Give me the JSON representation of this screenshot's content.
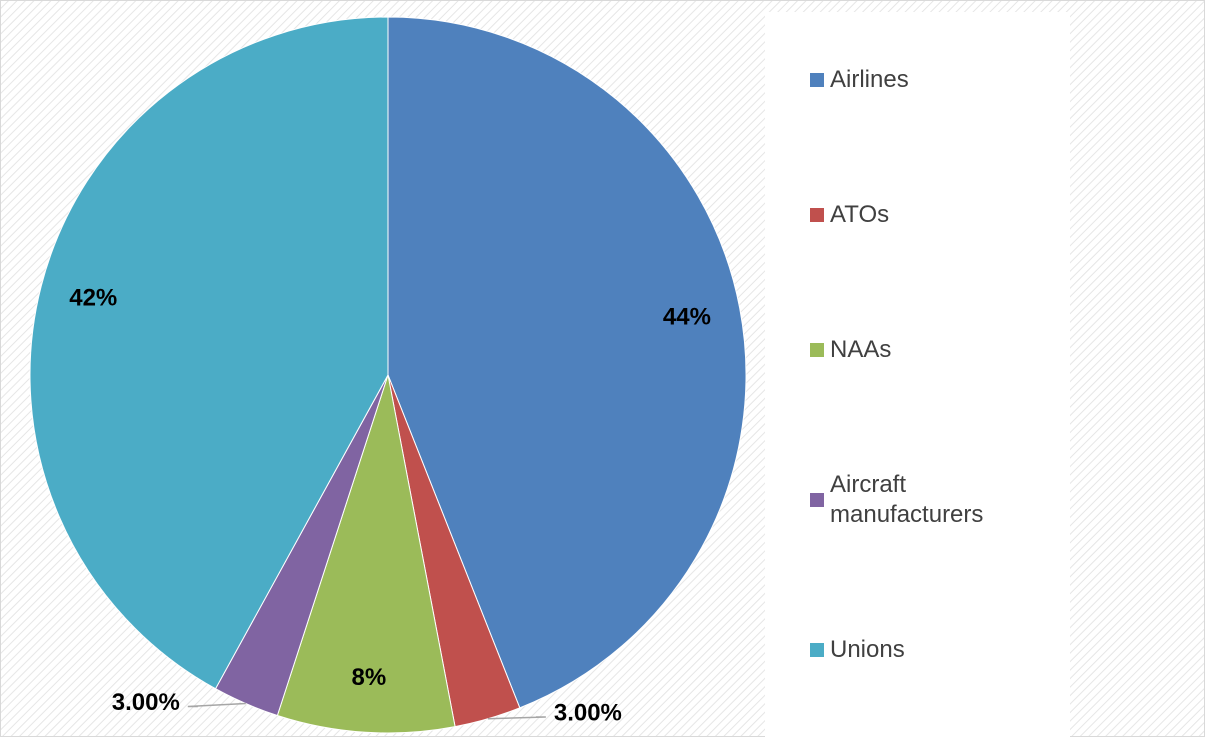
{
  "chart_data": {
    "type": "pie",
    "categories": [
      "Airlines",
      "ATOs",
      "NAAs",
      "Aircraft manufacturers",
      "Unions"
    ],
    "values": [
      44,
      3,
      8,
      3,
      42
    ],
    "value_labels": [
      "44%",
      "3.00%",
      "8%",
      "3.00%",
      "42%"
    ],
    "colors": [
      "#4f81bd",
      "#c0504d",
      "#9bbb59",
      "#8064a2",
      "#4bacc6"
    ],
    "legend": "right"
  }
}
